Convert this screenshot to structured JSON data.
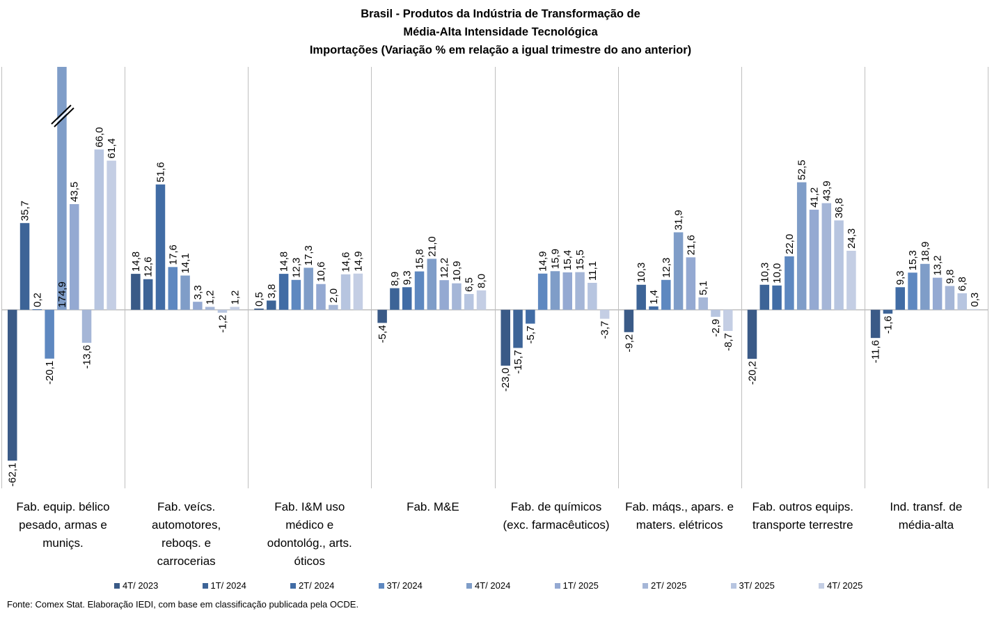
{
  "chart_data": {
    "type": "bar",
    "title": [
      "Brasil - Produtos da Indústria de Transformação de",
      "Média-Alta Intensidade Tecnológica",
      "Importações (Variação % em relação a igual trimestre do ano anterior)"
    ],
    "xlabel": "",
    "ylabel": "",
    "ylim": [
      -73.5,
      100
    ],
    "grid": false,
    "legend_position": "bottom",
    "axis_break": {
      "category_index": 0,
      "series_index": 4,
      "note": "bar clipped at top with break marks"
    },
    "categories": [
      [
        "Fab. equip. bélico",
        "pesado, armas e",
        "muniçs."
      ],
      [
        "Fab. veícs.",
        "automotores,",
        "reboqs. e",
        "carrocerias"
      ],
      [
        "Fab. I&M uso",
        "médico e",
        "odontológ., arts.",
        "óticos"
      ],
      [
        "Fab. M&E"
      ],
      [
        "Fab. de químicos",
        "(exc. farmacêuticos)"
      ],
      [
        "Fab. máqs., apars. e",
        "maters. elétricos"
      ],
      [
        "Fab. outros equips.",
        "transporte terrestre"
      ],
      [
        "Ind. transf. de",
        "média-alta"
      ]
    ],
    "series": [
      {
        "name": "4T/ 2023",
        "color": "#3A5A87",
        "values": [
          -62.1,
          14.8,
          0.5,
          -5.4,
          -23.0,
          -9.2,
          -20.2,
          -11.6
        ],
        "labels": [
          "-62,1",
          "14,8",
          "0,5",
          "-5,4",
          "-23,0",
          "-9,2",
          "-20,2",
          "-11,6"
        ]
      },
      {
        "name": "1T/ 2024",
        "color": "#3D6497",
        "values": [
          35.7,
          12.6,
          3.8,
          8.9,
          -15.7,
          10.3,
          10.3,
          -1.6
        ],
        "labels": [
          "35,7",
          "12,6",
          "3,8",
          "8,9",
          "-15,7",
          "10,3",
          "10,3",
          "-1,6"
        ]
      },
      {
        "name": "2T/ 2024",
        "color": "#416CA5",
        "values": [
          0.2,
          51.6,
          14.8,
          9.3,
          -5.7,
          1.4,
          10.0,
          9.3
        ],
        "labels": [
          "0,2",
          "51,6",
          "14,8",
          "9,3",
          "-5,7",
          "1,4",
          "10,0",
          "9,3"
        ]
      },
      {
        "name": "3T/ 2024",
        "color": "#5E88C0",
        "values": [
          -20.1,
          17.6,
          12.3,
          15.8,
          14.9,
          12.3,
          22.0,
          15.3
        ],
        "labels": [
          "-20,1",
          "17,6",
          "12,3",
          "15,8",
          "14,9",
          "12,3",
          "22,0",
          "15,3"
        ]
      },
      {
        "name": "4T/ 2024",
        "color": "#7F9DC8",
        "values": [
          174.9,
          14.1,
          17.3,
          21.0,
          15.9,
          31.9,
          52.5,
          18.9
        ],
        "labels": [
          "174,9",
          "14,1",
          "17,3",
          "21,0",
          "15,9",
          "31,9",
          "52,5",
          "18,9"
        ]
      },
      {
        "name": "1T/ 2025",
        "color": "#94A9D2",
        "values": [
          43.5,
          3.3,
          10.6,
          12.2,
          15.4,
          21.6,
          41.2,
          13.2
        ],
        "labels": [
          "43,5",
          "3,3",
          "10,6",
          "12,2",
          "15,4",
          "21,6",
          "41,2",
          "13,2"
        ]
      },
      {
        "name": "2T/ 2025",
        "color": "#A5B6D7",
        "values": [
          -13.6,
          1.2,
          2.0,
          10.9,
          15.5,
          5.1,
          43.9,
          9.8
        ],
        "labels": [
          "-13,6",
          "1,2",
          "2,0",
          "10,9",
          "15,5",
          "5,1",
          "43,9",
          "9,8"
        ]
      },
      {
        "name": "3T/ 2025",
        "color": "#B7C5E0",
        "values": [
          66.0,
          -1.2,
          14.6,
          6.5,
          11.1,
          -2.9,
          36.8,
          6.8
        ],
        "labels": [
          "66,0",
          "-1,2",
          "14,6",
          "6,5",
          "11,1",
          "-2,9",
          "36,8",
          "6,8"
        ]
      },
      {
        "name": "4T/ 2025",
        "color": "#C4CEE4",
        "values": [
          61.4,
          1.2,
          14.9,
          8.0,
          -3.7,
          -8.7,
          24.3,
          0.3
        ],
        "labels": [
          "61,4",
          "1,2",
          "14,9",
          "8,0",
          "-3,7",
          "-8,7",
          "24,3",
          "0,3"
        ]
      }
    ]
  },
  "footer": {
    "source": "Fonte: Comex Stat. Elaboração IEDI, com base em classificação publicada pela OCDE."
  }
}
